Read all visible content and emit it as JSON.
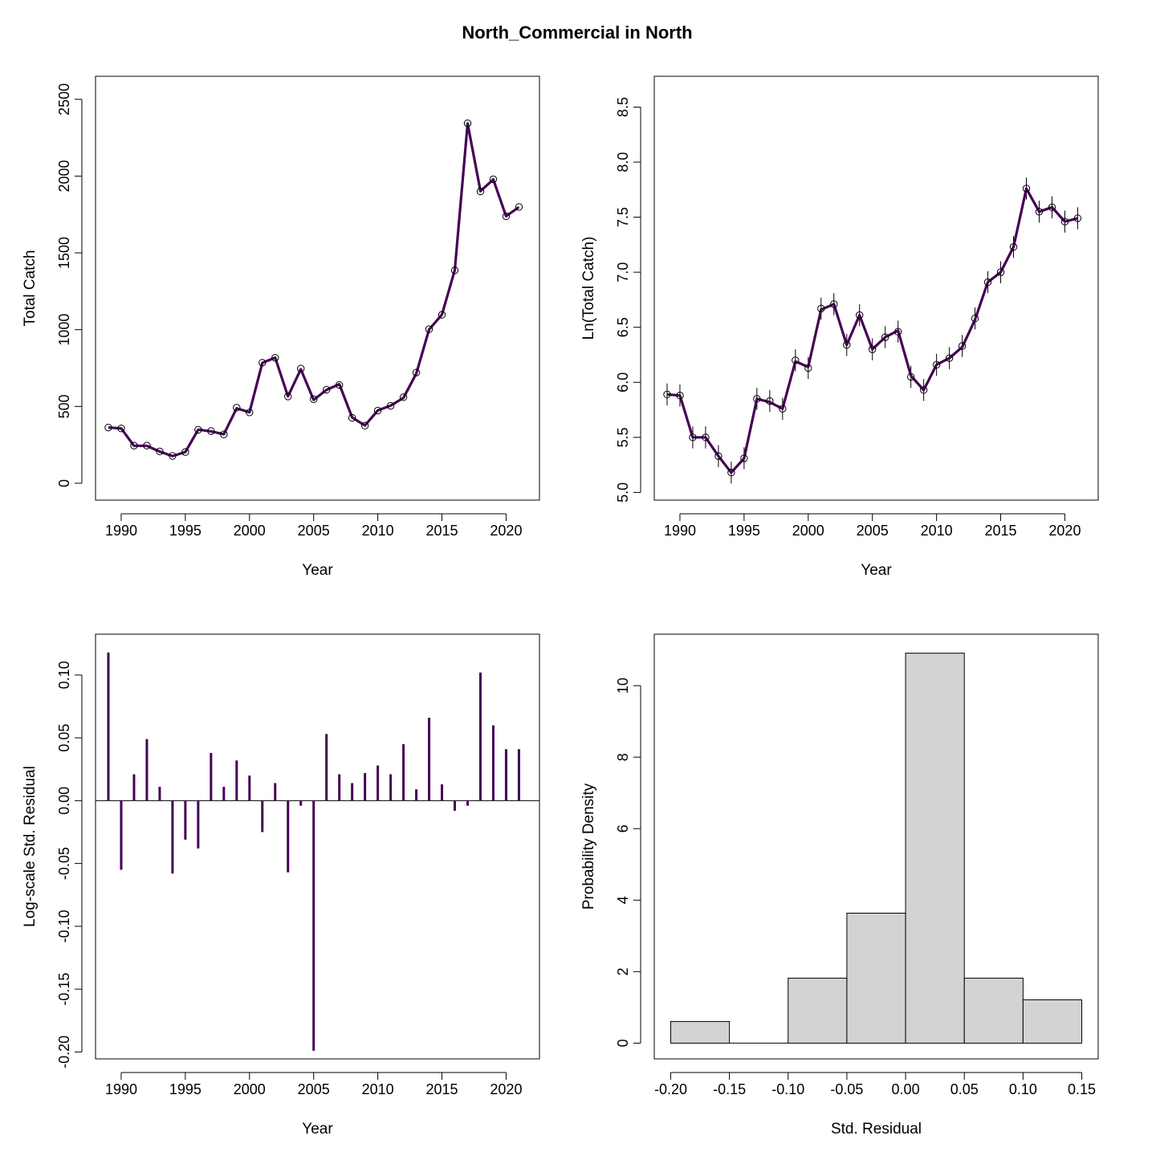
{
  "figure_title": "North_Commercial in North",
  "colors": {
    "series": "#440154",
    "hist_fill": "#d3d3d3",
    "axis": "#000000"
  },
  "chart_data": [
    {
      "type": "line",
      "id": "catch",
      "xlabel": "Year",
      "ylabel": "Total Catch",
      "xlim": [
        1988,
        2022.6
      ],
      "ylim": [
        -110,
        2650
      ],
      "xticks": [
        1990,
        1995,
        2000,
        2005,
        2010,
        2015,
        2020
      ],
      "yticks": [
        0,
        500,
        1000,
        1500,
        2000,
        2500
      ],
      "ytick_labels": [
        "0",
        "500",
        "1000",
        "1500",
        "2000",
        "2500"
      ],
      "x": [
        1989,
        1990,
        1991,
        1992,
        1993,
        1994,
        1995,
        1996,
        1997,
        1998,
        1999,
        2000,
        2001,
        2002,
        2003,
        2004,
        2005,
        2006,
        2007,
        2008,
        2009,
        2010,
        2011,
        2012,
        2013,
        2014,
        2015,
        2016,
        2017,
        2018,
        2019,
        2020,
        2021
      ],
      "observed": [
        363,
        357,
        245,
        245,
        207,
        178,
        203,
        348,
        340,
        318,
        492,
        461,
        785,
        817,
        565,
        747,
        547,
        609,
        640,
        426,
        375,
        473,
        504,
        560,
        721,
        1003,
        1097,
        1386,
        2344,
        1900,
        1979,
        1738,
        1799
      ],
      "predicted": [
        363,
        357,
        244,
        244,
        206,
        177,
        203,
        349,
        338,
        319,
        488,
        462,
        784,
        818,
        566,
        742,
        543,
        608,
        645,
        428,
        376,
        474,
        506,
        556,
        715,
        1001,
        1098,
        1387,
        2342,
        1902,
        1978,
        1739,
        1798
      ]
    },
    {
      "type": "line",
      "id": "lncatch",
      "xlabel": "Year",
      "ylabel": "Ln(Total Catch)",
      "xlim": [
        1988,
        2022.6
      ],
      "ylim": [
        4.93,
        8.78
      ],
      "xticks": [
        1990,
        1995,
        2000,
        2005,
        2010,
        2015,
        2020
      ],
      "yticks": [
        5.0,
        5.5,
        6.0,
        6.5,
        7.0,
        7.5,
        8.0,
        8.5
      ],
      "ytick_labels": [
        "5.0",
        "5.5",
        "6.0",
        "6.5",
        "7.0",
        "7.5",
        "8.0",
        "8.5"
      ],
      "error_half_width": 0.1,
      "x": [
        1989,
        1990,
        1991,
        1992,
        1993,
        1994,
        1995,
        1996,
        1997,
        1998,
        1999,
        2000,
        2001,
        2002,
        2003,
        2004,
        2005,
        2006,
        2007,
        2008,
        2009,
        2010,
        2011,
        2012,
        2013,
        2014,
        2015,
        2016,
        2017,
        2018,
        2019,
        2020,
        2021
      ],
      "observed": [
        5.89,
        5.88,
        5.5,
        5.5,
        5.33,
        5.18,
        5.31,
        5.85,
        5.83,
        5.76,
        6.2,
        6.13,
        6.67,
        6.71,
        6.34,
        6.61,
        6.3,
        6.41,
        6.46,
        6.05,
        5.93,
        6.16,
        6.22,
        6.33,
        6.58,
        6.91,
        7.0,
        7.23,
        7.76,
        7.55,
        7.59,
        7.46,
        7.49
      ],
      "predicted": [
        5.89,
        5.88,
        5.5,
        5.5,
        5.33,
        5.18,
        5.31,
        5.85,
        5.82,
        5.76,
        6.19,
        6.14,
        6.66,
        6.71,
        6.34,
        6.61,
        6.3,
        6.41,
        6.47,
        6.06,
        5.93,
        6.16,
        6.22,
        6.32,
        6.57,
        6.91,
        7.0,
        7.23,
        7.76,
        7.55,
        7.59,
        7.46,
        7.49
      ]
    },
    {
      "type": "bar",
      "id": "residuals",
      "xlabel": "Year",
      "ylabel": "Log-scale Std. Residual",
      "xlim": [
        1988,
        2022.6
      ],
      "ylim": [
        -0.2055,
        0.1325
      ],
      "xticks": [
        1990,
        1995,
        2000,
        2005,
        2010,
        2015,
        2020
      ],
      "yticks": [
        -0.2,
        -0.15,
        -0.1,
        -0.05,
        0.0,
        0.05,
        0.1
      ],
      "ytick_labels": [
        "-0.20",
        "-0.15",
        "-0.10",
        "-0.05",
        "0.00",
        "0.05",
        "0.10"
      ],
      "x": [
        1989,
        1990,
        1991,
        1992,
        1993,
        1994,
        1995,
        1996,
        1997,
        1998,
        1999,
        2000,
        2001,
        2002,
        2003,
        2004,
        2005,
        2006,
        2007,
        2008,
        2009,
        2010,
        2011,
        2012,
        2013,
        2014,
        2015,
        2016,
        2017,
        2018,
        2019,
        2020,
        2021
      ],
      "values": [
        0.118,
        -0.055,
        0.021,
        0.049,
        0.011,
        -0.058,
        -0.031,
        -0.038,
        0.038,
        0.011,
        0.032,
        0.02,
        -0.025,
        0.014,
        -0.057,
        -0.004,
        -0.199,
        0.053,
        0.021,
        0.014,
        0.022,
        0.028,
        0.021,
        0.045,
        0.009,
        0.066,
        0.013,
        -0.008,
        -0.004,
        0.102,
        0.06,
        0.041,
        0.041
      ]
    },
    {
      "type": "bar",
      "id": "histogram",
      "xlabel": "Std. Residual",
      "ylabel": "Probability Density",
      "xlim": [
        -0.214,
        0.164
      ],
      "ylim": [
        -0.44,
        11.44
      ],
      "xticks": [
        -0.2,
        -0.15,
        -0.1,
        -0.05,
        0.0,
        0.05,
        0.1,
        0.15
      ],
      "xtick_labels": [
        "-0.20",
        "-0.15",
        "-0.10",
        "-0.05",
        "0.00",
        "0.05",
        "0.10",
        "0.15"
      ],
      "yticks": [
        0,
        2,
        4,
        6,
        8,
        10
      ],
      "ytick_labels": [
        "0",
        "2",
        "4",
        "6",
        "8",
        "10"
      ],
      "bins": [
        {
          "from": -0.2,
          "to": -0.15,
          "density": 0.606
        },
        {
          "from": -0.15,
          "to": -0.1,
          "density": 0
        },
        {
          "from": -0.1,
          "to": -0.05,
          "density": 1.818
        },
        {
          "from": -0.05,
          "to": 0.0,
          "density": 3.636
        },
        {
          "from": 0.0,
          "to": 0.05,
          "density": 10.909
        },
        {
          "from": 0.05,
          "to": 0.1,
          "density": 1.818
        },
        {
          "from": 0.1,
          "to": 0.15,
          "density": 1.212
        }
      ]
    }
  ]
}
